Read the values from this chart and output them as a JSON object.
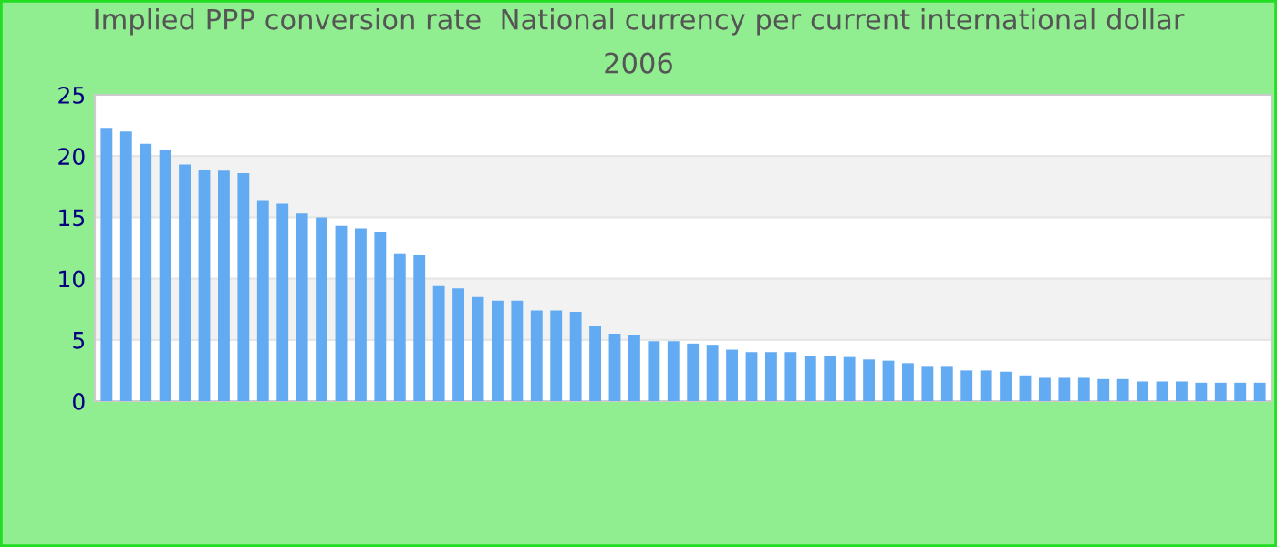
{
  "chart_data": {
    "type": "bar",
    "title": "Implied PPP conversion rate  National currency per current international dollar",
    "subtitle": "2006",
    "categories": [
      null,
      null,
      null,
      null,
      null,
      null,
      null,
      null,
      null,
      null,
      null,
      null,
      null,
      null,
      null,
      null,
      null,
      null,
      null,
      null,
      null,
      null,
      null,
      null,
      null,
      null,
      null,
      null,
      null,
      null,
      null,
      null,
      null,
      null,
      null,
      null,
      null,
      null,
      null,
      null,
      null,
      null,
      null,
      null,
      null,
      null,
      null,
      null,
      null,
      null,
      null,
      null,
      null,
      null,
      null,
      null,
      null,
      null,
      null,
      null
    ],
    "values": [
      22.3,
      22.0,
      21.0,
      20.5,
      19.3,
      18.9,
      18.8,
      18.6,
      16.4,
      16.1,
      15.3,
      15.0,
      14.3,
      14.1,
      13.8,
      12.0,
      11.9,
      9.4,
      9.2,
      8.5,
      8.2,
      8.2,
      7.4,
      7.4,
      7.3,
      6.1,
      5.5,
      5.4,
      4.9,
      4.9,
      4.7,
      4.6,
      4.2,
      4.0,
      4.0,
      4.0,
      3.7,
      3.7,
      3.6,
      3.4,
      3.3,
      3.1,
      2.8,
      2.8,
      2.5,
      2.5,
      2.4,
      2.1,
      1.9,
      1.9,
      1.9,
      1.8,
      1.8,
      1.6,
      1.6,
      1.6,
      1.5,
      1.5,
      1.5,
      1.5
    ],
    "color": "#62aaf2",
    "ylim": [
      0,
      25
    ],
    "yticks": [
      0,
      5,
      10,
      15,
      20,
      25
    ],
    "grid": "y",
    "legend": false
  }
}
